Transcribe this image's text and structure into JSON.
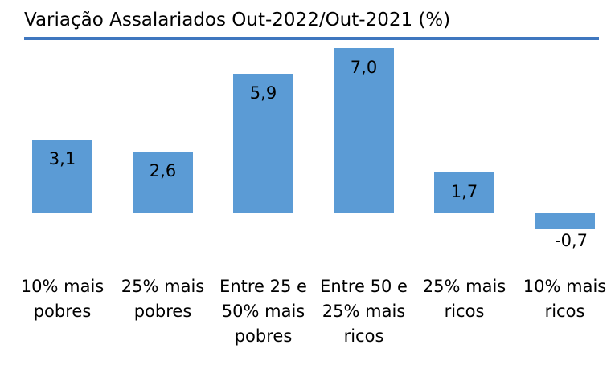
{
  "chart_data": {
    "type": "bar",
    "title": "Variação Assalariados Out-2022/Out-2021 (%)",
    "categories": [
      "10% mais pobres",
      "25% mais pobres",
      "Entre 25 e 50% mais pobres",
      "Entre 50 e 25% mais ricos",
      "25% mais ricos",
      "10% mais ricos"
    ],
    "values": [
      3.1,
      2.6,
      5.9,
      7.0,
      1.7,
      -0.7
    ],
    "value_labels": [
      "3,1",
      "2,6",
      "5,9",
      "7,0",
      "1,7",
      "-0,7"
    ],
    "color": "#5b9bd5"
  }
}
